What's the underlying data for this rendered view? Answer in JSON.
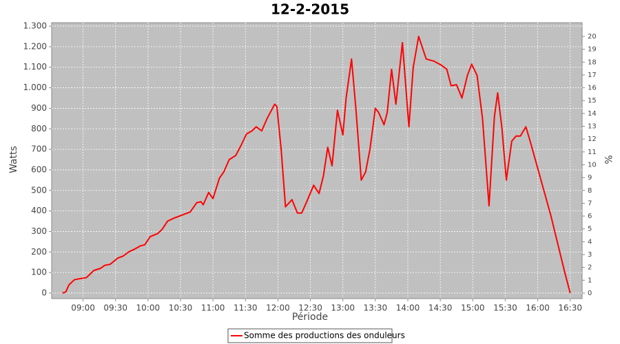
{
  "chart_data": {
    "type": "line",
    "title": "12-2-2015",
    "x_label": "Période",
    "y_label": "Watts",
    "y2_label": "%",
    "x": [
      "08:41",
      "08:44",
      "08:47",
      "08:52",
      "08:57",
      "09:03",
      "09:10",
      "09:16",
      "09:20",
      "09:25",
      "09:32",
      "09:37",
      "09:42",
      "09:48",
      "09:53",
      "09:57",
      "10:02",
      "10:09",
      "10:13",
      "10:18",
      "10:24",
      "10:29",
      "10:34",
      "10:39",
      "10:45",
      "10:49",
      "10:51",
      "10:56",
      "11:00",
      "11:06",
      "11:10",
      "11:15",
      "11:21",
      "11:26",
      "11:31",
      "11:36",
      "11:40",
      "11:45",
      "11:50",
      "11:57",
      "11:59",
      "12:03",
      "12:07",
      "12:13",
      "12:18",
      "12:22",
      "12:27",
      "12:33",
      "12:38",
      "12:42",
      "12:46",
      "12:50",
      "12:55",
      "13:00",
      "13:03",
      "13:08",
      "13:12",
      "13:17",
      "13:21",
      "13:25",
      "13:30",
      "13:33",
      "13:38",
      "13:41",
      "13:45",
      "13:49",
      "13:55",
      "14:01",
      "14:05",
      "14:10",
      "14:17",
      "14:24",
      "14:31",
      "14:36",
      "14:40",
      "14:45",
      "14:50",
      "14:55",
      "14:59",
      "15:04",
      "15:09",
      "15:15",
      "15:20",
      "15:23",
      "15:27",
      "15:31",
      "15:36",
      "15:40",
      "15:44",
      "15:49",
      "15:53",
      "16:12",
      "16:25",
      "16:30"
    ],
    "series": [
      {
        "name": "Somme des productions des onduleurs",
        "color": "#ff0000",
        "values": [
          0,
          5,
          40,
          65,
          70,
          75,
          110,
          120,
          135,
          140,
          170,
          180,
          200,
          215,
          230,
          235,
          275,
          290,
          310,
          350,
          365,
          375,
          385,
          395,
          440,
          445,
          430,
          490,
          460,
          560,
          590,
          650,
          670,
          720,
          775,
          790,
          810,
          790,
          850,
          920,
          910,
          700,
          420,
          455,
          390,
          390,
          450,
          525,
          485,
          570,
          710,
          620,
          890,
          770,
          950,
          1140,
          900,
          550,
          590,
          700,
          900,
          880,
          820,
          880,
          1090,
          920,
          1220,
          810,
          1100,
          1250,
          1140,
          1130,
          1110,
          1090,
          1010,
          1015,
          950,
          1060,
          1115,
          1060,
          850,
          425,
          860,
          975,
          800,
          550,
          740,
          765,
          765,
          810,
          740,
          380,
          100,
          0
        ]
      }
    ],
    "xlim": [
      "08:31",
      "16:41"
    ],
    "xticks": [
      "09:00",
      "09:30",
      "10:00",
      "10:30",
      "11:00",
      "11:30",
      "12:00",
      "12:30",
      "13:00",
      "13:30",
      "14:00",
      "14:30",
      "15:00",
      "15:30",
      "16:00",
      "16:30"
    ],
    "ylim": [
      -27,
      1317
    ],
    "yticks": [
      0,
      100,
      200,
      300,
      400,
      500,
      600,
      700,
      800,
      900,
      {
        "value": 1000,
        "label": "1.000"
      },
      {
        "value": 1100,
        "label": "1.100"
      },
      {
        "value": 1200,
        "label": "1.200"
      },
      {
        "value": 1300,
        "label": "1.300"
      }
    ],
    "y2lim": [
      -0.43,
      21.07
    ],
    "y2ticks": [
      0,
      1,
      2,
      3,
      4,
      5,
      6,
      7,
      8,
      9,
      10,
      11,
      12,
      13,
      14,
      15,
      16,
      17,
      18,
      19,
      20
    ],
    "grid": true,
    "legend": "bottom"
  }
}
